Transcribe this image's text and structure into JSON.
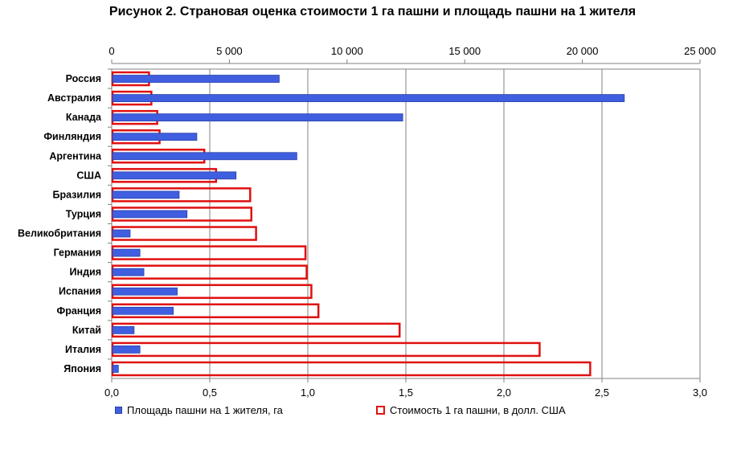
{
  "title": "Рисунок 2. Страновая оценка стоимости 1 га пашни и площадь пашни на 1 жителя",
  "colors": {
    "area": "#3f5fe0",
    "cost": "#e01010",
    "grid": "#808080"
  },
  "chart_data": {
    "type": "bar",
    "orientation": "horizontal",
    "categories": [
      "Россия",
      "Австралия",
      "Канада",
      "Финляндия",
      "Аргентина",
      "США",
      "Бразилия",
      "Турция",
      "Великобритания",
      "Германия",
      "Индия",
      "Испания",
      "Франция",
      "Китай",
      "Италия",
      "Япония"
    ],
    "series": [
      {
        "name": "Площадь пашни  на 1 жителя, га",
        "axis": "bottom",
        "values": [
          0.85,
          2.61,
          1.48,
          0.43,
          0.94,
          0.63,
          0.34,
          0.38,
          0.09,
          0.14,
          0.16,
          0.33,
          0.31,
          0.11,
          0.14,
          0.03
        ]
      },
      {
        "name": "Стоимость 1 га пашни, в долл. США",
        "axis": "top",
        "values": [
          1550,
          1650,
          1900,
          2000,
          3900,
          4400,
          5850,
          5900,
          6100,
          8200,
          8250,
          8450,
          8750,
          12200,
          18150,
          20300
        ]
      }
    ],
    "x_bottom": {
      "range": [
        0,
        3.0
      ],
      "ticks": [
        "0,0",
        "0,5",
        "1,0",
        "1,5",
        "2,0",
        "2,5",
        "3,0"
      ]
    },
    "x_top": {
      "range": [
        0,
        25000
      ],
      "ticks": [
        "0",
        "5 000",
        "10 000",
        "15 000",
        "20 000",
        "25 000"
      ]
    },
    "grid": true,
    "legend_position": "bottom"
  }
}
